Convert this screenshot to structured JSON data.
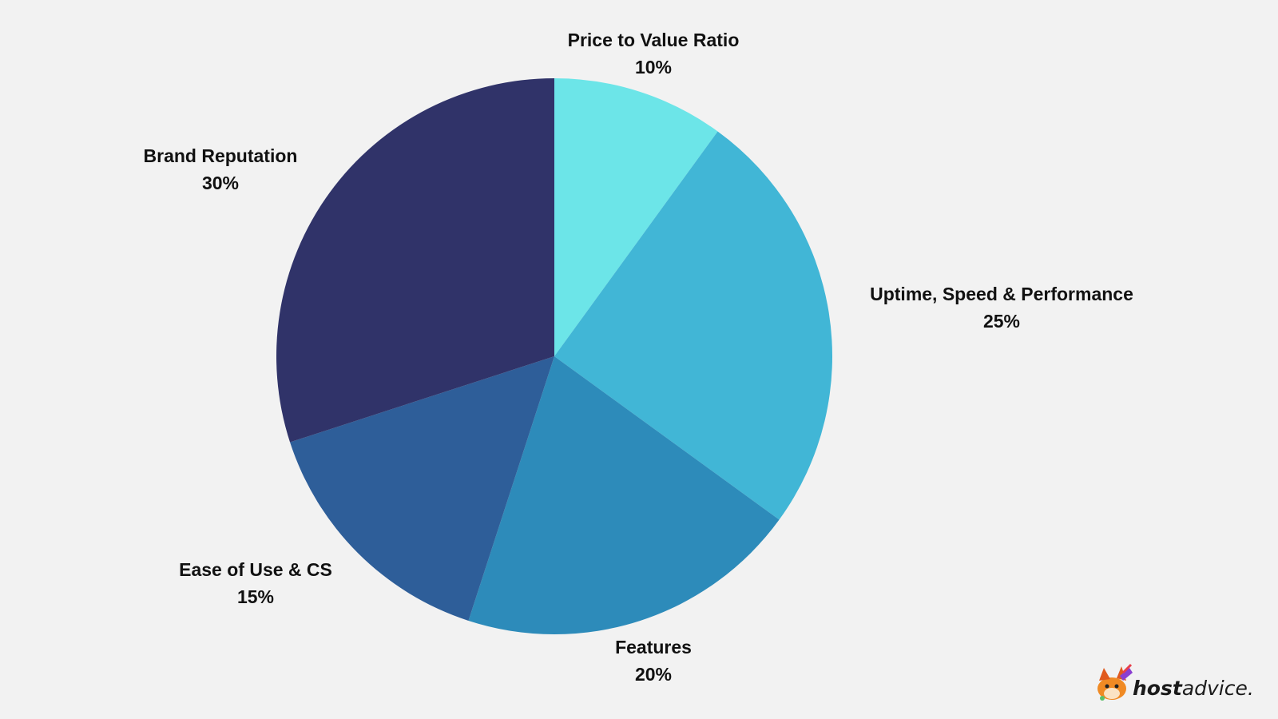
{
  "chart_data": {
    "type": "pie",
    "title": "",
    "start": "top",
    "direction": "clockwise",
    "slices": [
      {
        "label": "Price to Value Ratio",
        "value": 10,
        "value_label": "10%",
        "color": "#6ce5e8"
      },
      {
        "label": "Uptime, Speed & Performance",
        "value": 25,
        "value_label": "25%",
        "color": "#41b6d6"
      },
      {
        "label": "Features",
        "value": 20,
        "value_label": "20%",
        "color": "#2d8bba"
      },
      {
        "label": "Ease of Use & CS",
        "value": 15,
        "value_label": "15%",
        "color": "#2e5e99"
      },
      {
        "label": "Brand Reputation",
        "value": 30,
        "value_label": "30%",
        "color": "#303369"
      }
    ]
  },
  "brand": {
    "name_strong": "host",
    "name_rest": "advice.",
    "icon": "fox-mascot-icon"
  }
}
